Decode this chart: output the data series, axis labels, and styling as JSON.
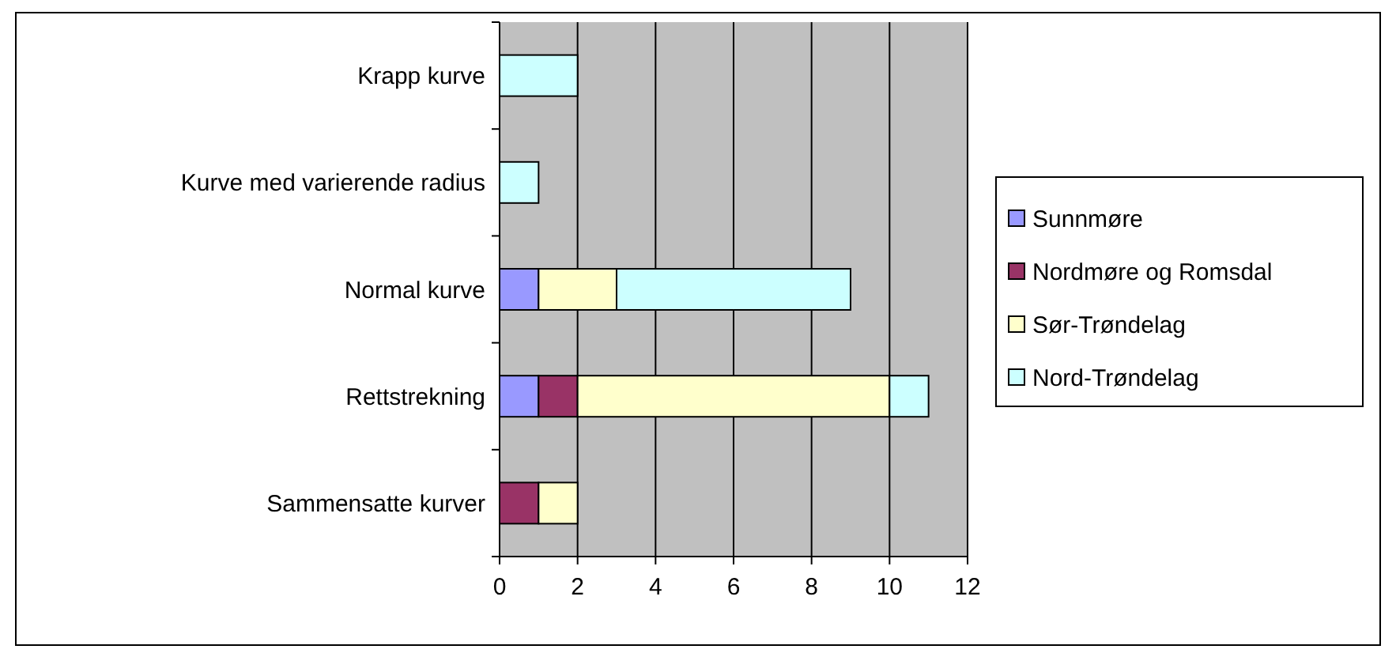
{
  "chart_data": {
    "type": "bar",
    "orientation": "horizontal",
    "stacked": true,
    "categories": [
      "Krapp kurve",
      "Kurve med varierende radius",
      "Normal kurve",
      "Rettstrekning",
      "Sammensatte kurver"
    ],
    "series": [
      {
        "name": "Sunnmøre",
        "color": "#9999ff",
        "values": [
          0,
          0,
          1,
          1,
          0
        ]
      },
      {
        "name": "Nordmøre og Romsdal",
        "color": "#993366",
        "values": [
          0,
          0,
          0,
          1,
          1
        ]
      },
      {
        "name": "Sør-Trøndelag",
        "color": "#ffffcc",
        "values": [
          0,
          0,
          2,
          8,
          1
        ]
      },
      {
        "name": "Nord-Trøndelag",
        "color": "#ccffff",
        "values": [
          2,
          1,
          6,
          1,
          0
        ]
      }
    ],
    "xlim": [
      0,
      12
    ],
    "xticks": [
      0,
      2,
      4,
      6,
      8,
      10,
      12
    ],
    "grid": "x",
    "legend": "right"
  }
}
